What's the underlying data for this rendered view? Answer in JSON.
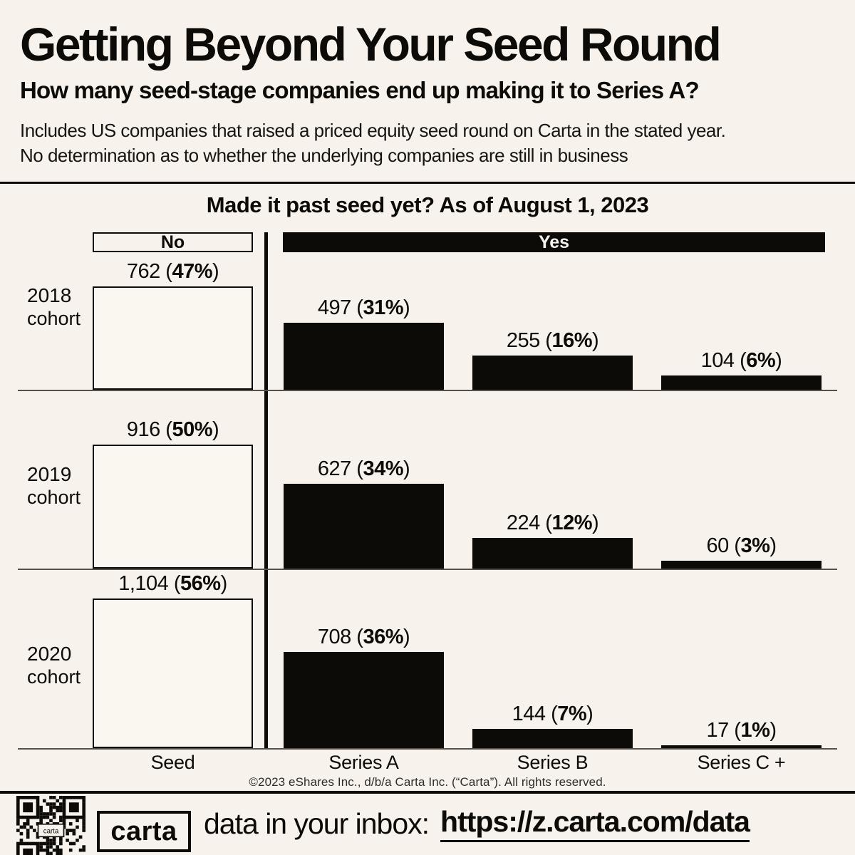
{
  "colors": {
    "background": "#f7f2eb",
    "ink": "#0c0b08",
    "bar_fill": "#0c0b08",
    "seed_bar_fill": "#faf7f1"
  },
  "header": {
    "title": "Getting Beyond Your Seed Round",
    "subtitle": "How many seed-stage companies end up making it to Series A?",
    "description_line1": "Includes US companies that raised a priced equity seed round on Carta in the stated year.",
    "description_line2": "No determination as to whether the underlying companies are still in business"
  },
  "chart_data": {
    "type": "bar",
    "title": "Made it past seed yet? As of August 1, 2023",
    "group_headers": {
      "no": "No",
      "yes": "Yes"
    },
    "categories": [
      "Seed",
      "Series A",
      "Series B",
      "Series C +"
    ],
    "value_label_format": "count (percent)",
    "legend_position": "none",
    "grid": "off",
    "seed_column_style": "outlined",
    "series_columns_style": "filled",
    "rows": [
      {
        "cohort_year": "2018",
        "cohort_word": "cohort",
        "values": [
          762,
          497,
          255,
          104
        ],
        "values_display": [
          "762",
          "497",
          "255",
          "104"
        ],
        "percents": [
          "47%",
          "31%",
          "16%",
          "6%"
        ]
      },
      {
        "cohort_year": "2019",
        "cohort_word": "cohort",
        "values": [
          916,
          627,
          224,
          60
        ],
        "values_display": [
          "916",
          "627",
          "224",
          "60"
        ],
        "percents": [
          "50%",
          "34%",
          "12%",
          "3%"
        ]
      },
      {
        "cohort_year": "2020",
        "cohort_word": "cohort",
        "values": [
          1104,
          708,
          144,
          17
        ],
        "values_display": [
          "1,104",
          "708",
          "144",
          "17"
        ],
        "percents": [
          "56%",
          "36%",
          "7%",
          "1%"
        ]
      }
    ],
    "footnote": "©2023 eShares Inc., d/b/a Carta Inc. (“Carta”). All rights reserved."
  },
  "footer": {
    "logo_text": "carta",
    "qr_center_label": "carta",
    "cta_text": "data in your inbox:",
    "cta_url": "https://z.carta.com/data"
  }
}
